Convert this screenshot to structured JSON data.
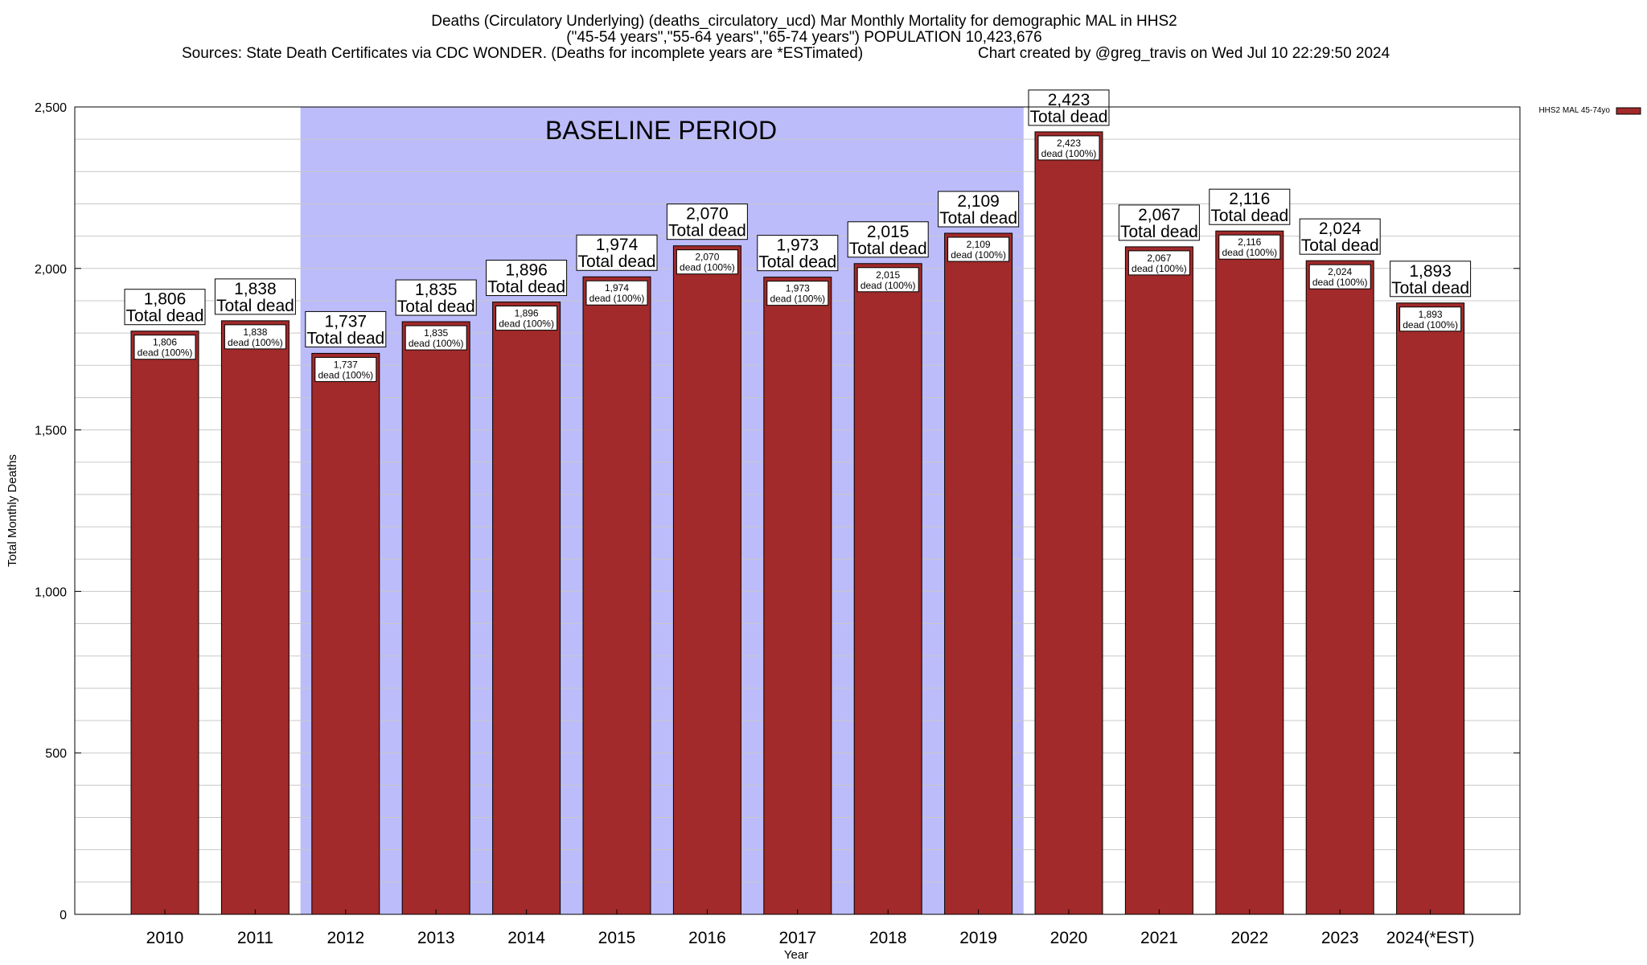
{
  "chart_data": {
    "type": "bar",
    "title_lines": [
      "Deaths (Circulatory Underlying) (deaths_circulatory_ucd) Mar Monthly Mortality for demographic MAL in HHS2",
      "(\"45-54 years\",\"55-64 years\",\"65-74 years\") POPULATION 10,423,676"
    ],
    "sources": "Sources: State Death Certificates via CDC WONDER. (Deaths for incomplete years are *ESTimated)",
    "credit": "Chart created by @greg_travis on Wed Jul 10 22:29:50 2024",
    "xlabel": "Year",
    "ylabel": "Total Monthly Deaths",
    "ylim": [
      0,
      2500
    ],
    "yticks": [
      0,
      500,
      1000,
      1500,
      2000,
      2500
    ],
    "ytick_labels": [
      "0",
      "500",
      "1,000",
      "1,500",
      "2,000",
      "2,500"
    ],
    "grid": true,
    "legend": {
      "placement": "top-right",
      "label": "HHS2 MAL 45-74yo"
    },
    "colors": {
      "bar": "#a22a2a",
      "baseline": "#bcbcfb"
    },
    "baseline_period": {
      "label": "BASELINE PERIOD",
      "start": "2012",
      "end": "2019"
    },
    "categories": [
      "2010",
      "2011",
      "2012",
      "2013",
      "2014",
      "2015",
      "2016",
      "2017",
      "2018",
      "2019",
      "2020",
      "2021",
      "2022",
      "2023",
      "2024(*EST)"
    ],
    "values": [
      1806,
      1838,
      1737,
      1835,
      1896,
      1974,
      2070,
      1973,
      2015,
      2109,
      2423,
      2067,
      2116,
      2024,
      1893
    ],
    "value_labels": [
      "1,806",
      "1,838",
      "1,737",
      "1,835",
      "1,896",
      "1,974",
      "2,070",
      "1,973",
      "2,015",
      "2,109",
      "2,423",
      "2,067",
      "2,116",
      "2,024",
      "1,893"
    ],
    "total_label": "Total dead",
    "inner_label": "dead (100%)"
  }
}
